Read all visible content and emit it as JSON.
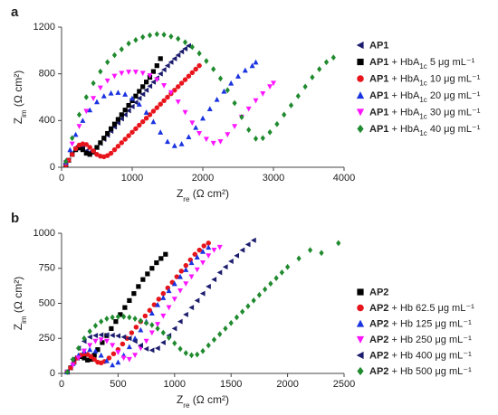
{
  "chart_data": [
    {
      "type": "scatter",
      "panel_label": "a",
      "xlabel": "Z_re (Ω cm²)",
      "ylabel": "Z_im (Ω cm²)",
      "xlim": [
        0,
        4000
      ],
      "ylim": [
        0,
        1200
      ],
      "x_ticks": [
        "0",
        "1000",
        "2000",
        "3000",
        "4000"
      ],
      "y_ticks": [
        "0",
        "400",
        "800",
        "1200"
      ],
      "legend_position": "right",
      "series": [
        {
          "name": "AP1",
          "marker": "left-triangle",
          "color": "#1c1c6e",
          "x": [
            60,
            100,
            150,
            200,
            250,
            300,
            350,
            400,
            450,
            500,
            550,
            600,
            650,
            700,
            750,
            800,
            850,
            900,
            950,
            1000,
            1050,
            1100,
            1150,
            1200,
            1250,
            1300,
            1350,
            1400,
            1450,
            1500,
            1550,
            1600,
            1650,
            1700,
            1750,
            1800
          ],
          "y": [
            20,
            60,
            120,
            170,
            190,
            170,
            140,
            130,
            140,
            170,
            205,
            240,
            275,
            310,
            345,
            380,
            415,
            450,
            485,
            520,
            555,
            590,
            625,
            660,
            695,
            730,
            765,
            800,
            835,
            870,
            900,
            930,
            960,
            990,
            1015,
            1040
          ]
        },
        {
          "name": "AP1 + HbA1c 5 μg mL⁻¹",
          "marker": "square",
          "color": "#000000",
          "x": [
            60,
            100,
            150,
            200,
            250,
            300,
            350,
            400,
            450,
            500,
            550,
            600,
            650,
            700,
            750,
            800,
            850,
            900,
            950,
            1000,
            1050,
            1100,
            1150,
            1200,
            1250,
            1300,
            1350,
            1400
          ],
          "y": [
            20,
            60,
            110,
            150,
            165,
            150,
            120,
            110,
            130,
            170,
            210,
            250,
            290,
            330,
            370,
            410,
            450,
            490,
            530,
            570,
            610,
            650,
            690,
            730,
            770,
            820,
            870,
            930
          ]
        },
        {
          "name": "AP1 + HbA1c 10 μg mL⁻¹",
          "marker": "circle",
          "color": "#e8141c",
          "x": [
            60,
            100,
            150,
            200,
            250,
            300,
            350,
            400,
            450,
            500,
            550,
            600,
            650,
            700,
            750,
            800,
            850,
            900,
            950,
            1000,
            1050,
            1100,
            1150,
            1200,
            1250,
            1300,
            1350,
            1400,
            1450,
            1500,
            1550,
            1600,
            1650,
            1700,
            1750,
            1800,
            1850,
            1900,
            1950
          ],
          "y": [
            20,
            60,
            110,
            160,
            190,
            200,
            195,
            170,
            140,
            110,
            95,
            90,
            100,
            120,
            150,
            180,
            210,
            240,
            270,
            300,
            330,
            360,
            390,
            420,
            450,
            480,
            510,
            540,
            570,
            600,
            630,
            660,
            690,
            720,
            750,
            780,
            810,
            840,
            870
          ]
        },
        {
          "name": "AP1 + HbA1c 20 μg mL⁻¹",
          "marker": "triangle-up",
          "color": "#1a33e0",
          "x": [
            60,
            120,
            200,
            300,
            400,
            500,
            600,
            700,
            800,
            900,
            1000,
            1100,
            1200,
            1300,
            1400,
            1500,
            1600,
            1700,
            1800,
            1900,
            2000,
            2100,
            2200,
            2300,
            2400,
            2500,
            2600,
            2700,
            2750
          ],
          "y": [
            40,
            150,
            280,
            400,
            490,
            560,
            610,
            635,
            640,
            625,
            590,
            540,
            470,
            390,
            300,
            220,
            185,
            200,
            260,
            340,
            420,
            500,
            580,
            650,
            720,
            780,
            830,
            870,
            900
          ]
        },
        {
          "name": "AP1 + HbA1c 30 μg mL⁻¹",
          "marker": "triangle-down",
          "color": "#ff14ff",
          "x": [
            60,
            150,
            250,
            350,
            450,
            550,
            650,
            750,
            850,
            950,
            1050,
            1150,
            1250,
            1350,
            1450,
            1550,
            1650,
            1750,
            1850,
            1950,
            2050,
            2150,
            2250,
            2350,
            2450,
            2550,
            2650,
            2750,
            2850,
            2950,
            3000
          ],
          "y": [
            40,
            200,
            350,
            480,
            590,
            680,
            740,
            780,
            805,
            815,
            815,
            805,
            785,
            750,
            700,
            640,
            560,
            470,
            380,
            290,
            240,
            205,
            220,
            280,
            350,
            430,
            500,
            570,
            630,
            690,
            720
          ]
        },
        {
          "name": "AP1 + HbA1c 40 μg mL⁻¹",
          "marker": "diamond",
          "color": "#1f8a2e",
          "x": [
            60,
            150,
            250,
            350,
            450,
            550,
            650,
            750,
            850,
            950,
            1050,
            1150,
            1250,
            1350,
            1450,
            1550,
            1650,
            1750,
            1850,
            1950,
            2050,
            2150,
            2250,
            2350,
            2450,
            2550,
            2650,
            2750,
            2850,
            2950,
            3050,
            3150,
            3250,
            3350,
            3450,
            3550,
            3650,
            3750,
            3850
          ],
          "y": [
            50,
            250,
            450,
            600,
            720,
            820,
            900,
            960,
            1010,
            1060,
            1090,
            1115,
            1130,
            1140,
            1135,
            1120,
            1100,
            1070,
            1030,
            975,
            910,
            840,
            760,
            660,
            550,
            430,
            320,
            245,
            250,
            300,
            370,
            450,
            530,
            610,
            690,
            770,
            840,
            900,
            940
          ]
        }
      ]
    },
    {
      "type": "scatter",
      "panel_label": "b",
      "xlabel": "Z_re (Ω cm²)",
      "ylabel": "Z_im (Ω cm²)",
      "xlim": [
        0,
        2500
      ],
      "ylim": [
        0,
        1000
      ],
      "x_ticks": [
        "0",
        "500",
        "1000",
        "1500",
        "2000",
        "2500"
      ],
      "y_ticks": [
        "0",
        "250",
        "500",
        "750",
        "1000"
      ],
      "legend_position": "right",
      "series": [
        {
          "name": "AP2",
          "marker": "square",
          "color": "#000000",
          "x": [
            50,
            80,
            110,
            140,
            170,
            200,
            230,
            260,
            290,
            320,
            360,
            400,
            440,
            480,
            520,
            560,
            600,
            640,
            680,
            720,
            760,
            800,
            840,
            880,
            920
          ],
          "y": [
            10,
            40,
            80,
            110,
            120,
            110,
            95,
            100,
            130,
            170,
            220,
            270,
            320,
            370,
            420,
            470,
            520,
            570,
            620,
            670,
            710,
            750,
            790,
            820,
            850
          ]
        },
        {
          "name": "AP2 + Hb 62.5 μg mL⁻¹",
          "marker": "circle",
          "color": "#e8141c",
          "x": [
            50,
            80,
            110,
            140,
            170,
            200,
            230,
            260,
            290,
            320,
            350,
            380,
            420,
            460,
            500,
            540,
            580,
            620,
            660,
            700,
            740,
            780,
            820,
            860,
            900,
            940,
            980,
            1020,
            1060,
            1100,
            1140,
            1180,
            1220,
            1260,
            1300
          ],
          "y": [
            10,
            40,
            80,
            110,
            130,
            140,
            135,
            120,
            100,
            80,
            75,
            85,
            110,
            140,
            170,
            210,
            250,
            290,
            330,
            370,
            410,
            450,
            490,
            530,
            570,
            610,
            650,
            690,
            730,
            770,
            810,
            850,
            880,
            910,
            930
          ]
        },
        {
          "name": "AP2 + Hb 125 μg mL⁻¹",
          "marker": "triangle-up",
          "color": "#1a33e0",
          "x": [
            50,
            100,
            150,
            200,
            250,
            300,
            350,
            400,
            450,
            500,
            550,
            600,
            650,
            700,
            750,
            800,
            850,
            900,
            950,
            1000,
            1050,
            1100,
            1150,
            1200,
            1250,
            1300
          ],
          "y": [
            10,
            70,
            130,
            160,
            170,
            160,
            130,
            90,
            60,
            80,
            130,
            190,
            250,
            310,
            370,
            430,
            490,
            540,
            590,
            640,
            690,
            740,
            790,
            830,
            870,
            900
          ]
        },
        {
          "name": "AP2 + Hb 250 μg mL⁻¹",
          "marker": "triangle-down",
          "color": "#ff14ff",
          "x": [
            50,
            100,
            150,
            200,
            250,
            300,
            350,
            400,
            450,
            500,
            550,
            600,
            650,
            700,
            750,
            800,
            850,
            900,
            950,
            1000,
            1050,
            1100,
            1150,
            1200,
            1250,
            1300,
            1350,
            1400
          ],
          "y": [
            10,
            60,
            110,
            160,
            200,
            230,
            240,
            230,
            200,
            150,
            110,
            100,
            130,
            180,
            230,
            290,
            350,
            410,
            470,
            530,
            590,
            640,
            690,
            740,
            790,
            840,
            880,
            900
          ]
        },
        {
          "name": "AP2 + Hb 400 μg mL⁻¹",
          "marker": "left-triangle",
          "color": "#1c1c6e",
          "x": [
            50,
            100,
            150,
            200,
            250,
            300,
            350,
            400,
            450,
            500,
            550,
            600,
            650,
            700,
            750,
            800,
            850,
            900,
            950,
            1000,
            1050,
            1100,
            1150,
            1200,
            1250,
            1300,
            1350,
            1400,
            1450,
            1500,
            1550,
            1600,
            1650,
            1700
          ],
          "y": [
            10,
            100,
            180,
            230,
            260,
            270,
            275,
            275,
            272,
            268,
            260,
            250,
            230,
            200,
            175,
            165,
            180,
            220,
            270,
            320,
            370,
            420,
            470,
            520,
            570,
            620,
            670,
            720,
            760,
            800,
            840,
            880,
            920,
            950
          ]
        },
        {
          "name": "AP2 + Hb 500 μg mL⁻¹",
          "marker": "diamond",
          "color": "#1f8a2e",
          "x": [
            50,
            100,
            150,
            200,
            250,
            300,
            350,
            400,
            450,
            500,
            550,
            600,
            650,
            700,
            750,
            800,
            850,
            900,
            950,
            1000,
            1050,
            1100,
            1150,
            1200,
            1250,
            1300,
            1350,
            1400,
            1450,
            1500,
            1550,
            1600,
            1650,
            1700,
            1750,
            1800,
            1850,
            1900,
            1950,
            2000,
            2100,
            2200,
            2300,
            2450
          ],
          "y": [
            10,
            100,
            180,
            250,
            300,
            340,
            370,
            390,
            400,
            405,
            405,
            400,
            390,
            375,
            360,
            345,
            320,
            290,
            255,
            215,
            175,
            145,
            130,
            135,
            160,
            200,
            240,
            280,
            320,
            360,
            400,
            440,
            480,
            520,
            560,
            600,
            640,
            680,
            720,
            760,
            820,
            880,
            860,
            930
          ]
        }
      ]
    }
  ]
}
